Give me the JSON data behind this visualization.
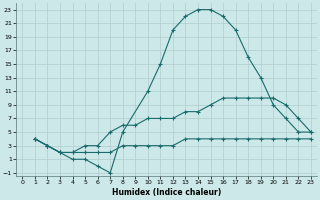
{
  "xlabel": "Humidex (Indice chaleur)",
  "bg_color": "#cce8e8",
  "grid_color": "#b0cccc",
  "line_color": "#1a6b6b",
  "xlim": [
    -0.5,
    23.5
  ],
  "ylim": [
    -1.5,
    24
  ],
  "xticks": [
    0,
    1,
    2,
    3,
    4,
    5,
    6,
    7,
    8,
    9,
    10,
    11,
    12,
    13,
    14,
    15,
    16,
    17,
    18,
    19,
    20,
    21,
    22,
    23
  ],
  "yticks": [
    -1,
    1,
    3,
    5,
    7,
    9,
    11,
    13,
    15,
    17,
    19,
    21,
    23
  ],
  "line1_x": [
    1,
    2,
    3,
    4,
    5,
    6,
    7,
    8,
    10,
    11,
    12,
    13,
    14,
    15,
    16,
    17,
    18,
    19,
    20,
    21,
    22,
    23
  ],
  "line1_y": [
    4,
    3,
    2,
    1,
    1,
    0,
    -1,
    5,
    11,
    15,
    20,
    22,
    23,
    23,
    22,
    20,
    16,
    13,
    9,
    7,
    5,
    5
  ],
  "line2_x": [
    1,
    2,
    3,
    4,
    5,
    6,
    7,
    8,
    9,
    10,
    11,
    12,
    13,
    14,
    15,
    16,
    17,
    18,
    19,
    20,
    21,
    22,
    23
  ],
  "line2_y": [
    4,
    3,
    2,
    2,
    2,
    2,
    2,
    3,
    3,
    3,
    3,
    3,
    4,
    4,
    4,
    4,
    4,
    4,
    4,
    4,
    4,
    4,
    4
  ],
  "line3_x": [
    1,
    2,
    3,
    4,
    5,
    6,
    7,
    8,
    9,
    10,
    11,
    12,
    13,
    14,
    15,
    16,
    17,
    18,
    19,
    20,
    21,
    22,
    23
  ],
  "line3_y": [
    4,
    3,
    2,
    2,
    3,
    3,
    5,
    6,
    6,
    7,
    7,
    7,
    8,
    8,
    9,
    10,
    10,
    10,
    10,
    10,
    9,
    7,
    5
  ]
}
